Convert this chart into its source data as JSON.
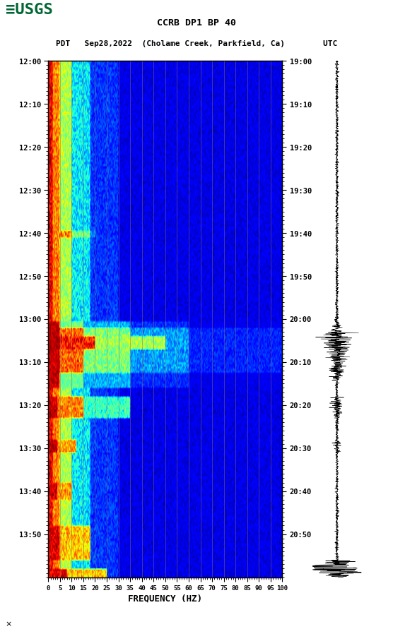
{
  "title_line1": "CCRB DP1 BP 40",
  "title_line2": "PDT   Sep28,2022  (Cholame Creek, Parkfield, Ca)        UTC",
  "xlabel": "FREQUENCY (HZ)",
  "freq_ticks": [
    0,
    5,
    10,
    15,
    20,
    25,
    30,
    35,
    40,
    45,
    50,
    55,
    60,
    65,
    70,
    75,
    80,
    85,
    90,
    95,
    100
  ],
  "time_ticks_left": [
    "12:00",
    "12:10",
    "12:20",
    "12:30",
    "12:40",
    "12:50",
    "13:00",
    "13:10",
    "13:20",
    "13:30",
    "13:40",
    "13:50"
  ],
  "time_ticks_right": [
    "19:00",
    "19:10",
    "19:20",
    "19:30",
    "19:40",
    "19:50",
    "20:00",
    "20:10",
    "20:20",
    "20:30",
    "20:40",
    "20:50"
  ],
  "bg_color": "white",
  "colormap": "jet",
  "fig_width": 5.52,
  "fig_height": 8.92,
  "usgs_logo_color": "#006633",
  "grid_color": "#8B7355"
}
